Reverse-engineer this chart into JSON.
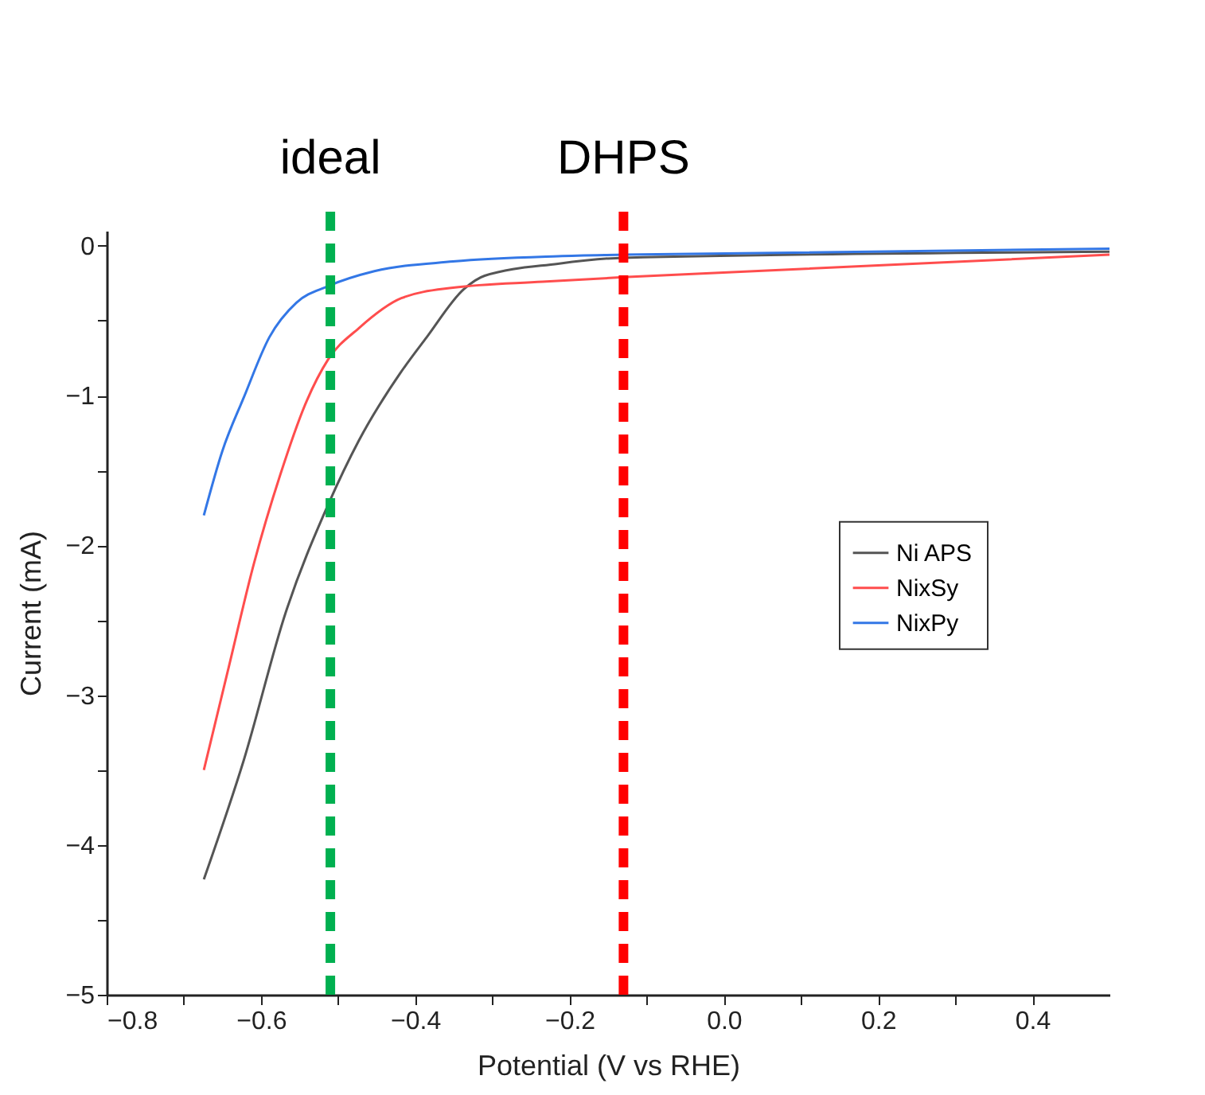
{
  "chart_data": {
    "type": "line",
    "xlabel": "Potential (V vs RHE)",
    "ylabel": "Current (mA)",
    "xlim": [
      -0.8,
      0.5
    ],
    "ylim": [
      -5,
      0.1
    ],
    "xticks": [
      {
        "value": -0.8,
        "label": "−0.8"
      },
      {
        "value": -0.7,
        "label": null
      },
      {
        "value": -0.6,
        "label": "−0.6"
      },
      {
        "value": -0.5,
        "label": null
      },
      {
        "value": -0.4,
        "label": "−0.4"
      },
      {
        "value": -0.3,
        "label": null
      },
      {
        "value": -0.2,
        "label": "−0.2"
      },
      {
        "value": -0.1,
        "label": null
      },
      {
        "value": 0,
        "label": "0.0"
      },
      {
        "value": 0.1,
        "label": null
      },
      0.2,
      {
        "value": 0.3,
        "label": null
      },
      0.4
    ],
    "yticks": [
      {
        "value": -5,
        "label": "−5"
      },
      {
        "value": -4.5,
        "label": null
      },
      {
        "value": -4,
        "label": "−4"
      },
      {
        "value": -3.5,
        "label": null
      },
      {
        "value": -3,
        "label": "−3"
      },
      {
        "value": -2.5,
        "label": null
      },
      {
        "value": -2,
        "label": "−2"
      },
      {
        "value": -1.5,
        "label": null
      },
      {
        "value": -1,
        "label": "−1"
      },
      {
        "value": -0.5,
        "label": null
      },
      {
        "value": 0,
        "label": "0"
      }
    ],
    "grid": false,
    "legend": "right",
    "line_style": "solid",
    "marker": "none",
    "series": [
      {
        "name": "Ni APS",
        "color": "#555555",
        "x": [
          -0.674,
          -0.622,
          -0.568,
          -0.513,
          -0.473,
          -0.418,
          -0.385,
          -0.337,
          -0.31,
          -0.215,
          -0.13,
          0.5
        ],
        "values": [
          -4.23,
          -3.43,
          -2.45,
          -1.73,
          -1.3,
          -0.84,
          -0.61,
          -0.29,
          -0.2,
          -0.12,
          -0.08,
          -0.04
        ]
      },
      {
        "name": "NixSy",
        "color": "#ff4d4d",
        "x": [
          -0.674,
          -0.643,
          -0.609,
          -0.575,
          -0.541,
          -0.513,
          -0.473,
          -0.418,
          -0.351,
          -0.235,
          -0.13,
          0.5
        ],
        "values": [
          -3.5,
          -2.84,
          -2.12,
          -1.53,
          -1.04,
          -0.76,
          -0.55,
          -0.35,
          -0.28,
          -0.24,
          -0.21,
          -0.06
        ]
      },
      {
        "name": "NixPy",
        "color": "#3377e6",
        "x": [
          -0.674,
          -0.65,
          -0.622,
          -0.589,
          -0.554,
          -0.513,
          -0.453,
          -0.351,
          -0.215,
          -0.13,
          0.5
        ],
        "values": [
          -1.8,
          -1.37,
          -1.01,
          -0.61,
          -0.38,
          -0.27,
          -0.17,
          -0.105,
          -0.07,
          -0.06,
          -0.02
        ]
      }
    ],
    "ref_lines": [
      {
        "axis": "x",
        "value": -0.51,
        "label": "ideal",
        "color": "#00b050",
        "line_style": "dashed"
      },
      {
        "axis": "x",
        "value": -0.13,
        "label": "DHPS",
        "color": "#ff0000",
        "line_style": "dashed"
      }
    ]
  }
}
